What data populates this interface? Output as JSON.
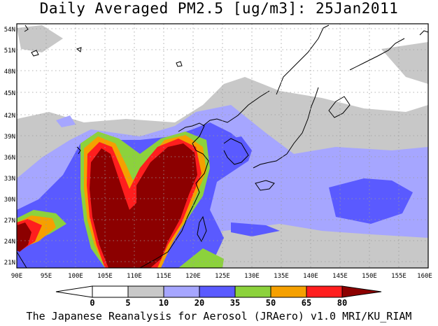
{
  "title": "Daily Averaged PM2.5 [ug/m3]: 25Jan2011",
  "footer": "The Japanese Reanalysis for Aerosol (JRAero) v1.0 MRI/KU_RIAM",
  "map": {
    "lon_labels": [
      "90E",
      "95E",
      "100E",
      "105E",
      "110E",
      "115E",
      "120E",
      "125E",
      "130E",
      "135E",
      "140E",
      "145E",
      "150E",
      "155E",
      "160E"
    ],
    "lat_labels": [
      "21N",
      "24N",
      "27N",
      "30N",
      "33N",
      "36N",
      "39N",
      "42N",
      "45N",
      "48N",
      "51N",
      "54N"
    ]
  },
  "colorbar": {
    "levels": [
      "0",
      "5",
      "10",
      "20",
      "35",
      "50",
      "65",
      "80"
    ],
    "colors": [
      "#ffffff",
      "#c8c8c8",
      "#a6a6ff",
      "#5a5aff",
      "#8cd23c",
      "#f5a000",
      "#ff1e1e",
      "#8c0000"
    ]
  }
}
